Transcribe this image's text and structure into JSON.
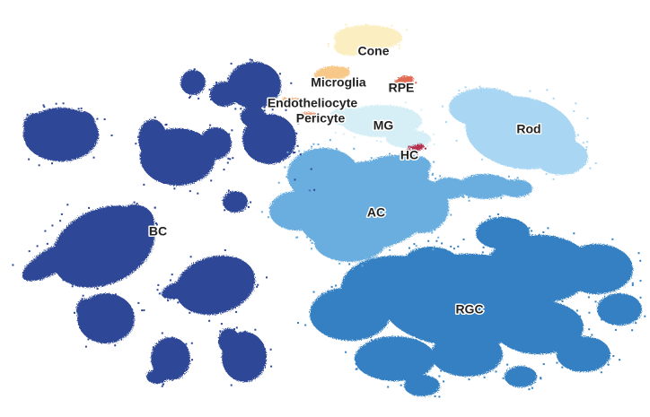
{
  "chart_data": {
    "type": "scatter",
    "title": "",
    "xlabel": "",
    "ylabel": "",
    "grid": false,
    "legend": "none",
    "clusters": [
      {
        "name": "Cone",
        "color": "#fbeec0"
      },
      {
        "name": "Microglia",
        "color": "#f7c888"
      },
      {
        "name": "RPE",
        "color": "#e06a52"
      },
      {
        "name": "Endotheliocyte",
        "color": "#f3b27a"
      },
      {
        "name": "Pericyte",
        "color": "#eaa07a"
      },
      {
        "name": "MG",
        "color": "#d6eef5"
      },
      {
        "name": "Rod",
        "color": "#a9d6f2"
      },
      {
        "name": "HC",
        "color": "#b4304d"
      },
      {
        "name": "AC",
        "color": "#6aaee0"
      },
      {
        "name": "BC",
        "color": "#2e4796"
      },
      {
        "name": "RGC",
        "color": "#3480c2"
      }
    ]
  }
}
